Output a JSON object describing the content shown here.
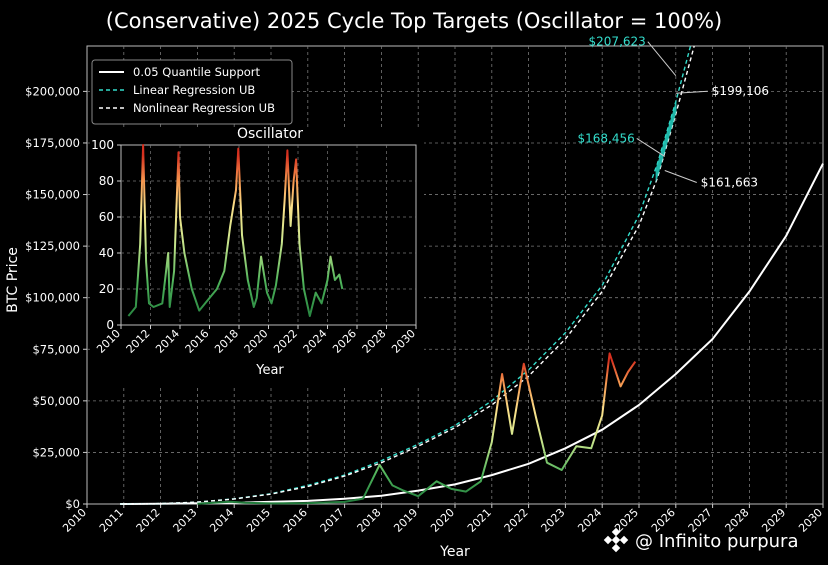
{
  "chart_data": [
    {
      "type": "line",
      "title": "(Conservative) 2025 Cycle Top Targets (Oscillator = 100%)",
      "xlabel": "Year",
      "ylabel": "BTC Price",
      "xlim": [
        2010,
        2030
      ],
      "ylim": [
        0,
        222000
      ],
      "x_ticks": [
        "2010",
        "2011",
        "2012",
        "2013",
        "2014",
        "2015",
        "2016",
        "2017",
        "2018",
        "2019",
        "2020",
        "2021",
        "2022",
        "2023",
        "2024",
        "2025",
        "2026",
        "2027",
        "2028",
        "2029",
        "2030"
      ],
      "y_ticks": [
        "$0",
        "$25,000",
        "$50,000",
        "$75,000",
        "$100,000",
        "$125,000",
        "$150,000",
        "$175,000",
        "$200,000"
      ],
      "grid": true,
      "legend_position": "top-left",
      "series": [
        {
          "name": "0.05 Quantile Support",
          "style": "solid",
          "color": "#ffffff",
          "x": [
            2010.9,
            2012,
            2014,
            2016,
            2017,
            2018,
            2019,
            2020,
            2021,
            2022,
            2023,
            2024,
            2025,
            2026,
            2027,
            2028,
            2029,
            2030
          ],
          "y": [
            0,
            100,
            600,
            1500,
            2500,
            4000,
            6500,
            9500,
            14000,
            19500,
            27000,
            36000,
            48000,
            63000,
            80000,
            103000,
            130000,
            165000
          ]
        },
        {
          "name": "Linear Regression UB",
          "style": "dashed",
          "color": "#33ddcc",
          "x": [
            2010.9,
            2012,
            2013,
            2014,
            2015,
            2016,
            2017,
            2018,
            2019,
            2020,
            2021,
            2022,
            2023,
            2024,
            2025,
            2025.5,
            2026,
            2026.4
          ],
          "y": [
            0,
            200,
            900,
            2500,
            5000,
            9000,
            14000,
            21000,
            29000,
            38000,
            50000,
            65000,
            83000,
            106000,
            140000,
            165000,
            195000,
            222000
          ]
        },
        {
          "name": "Nonlinear Regression UB",
          "style": "dashed",
          "color": "#ffffff",
          "x": [
            2010.9,
            2012,
            2013,
            2014,
            2015,
            2016,
            2017,
            2018,
            2019,
            2020,
            2021,
            2022,
            2023,
            2024,
            2025,
            2025.5,
            2026,
            2026.5
          ],
          "y": [
            0,
            200,
            900,
            2400,
            4800,
            8500,
            13500,
            20000,
            28000,
            37000,
            48000,
            62000,
            80000,
            103000,
            135000,
            158000,
            189000,
            222000
          ]
        },
        {
          "name": "BTC Price",
          "style": "oscillator-colored",
          "x": [
            2013.0,
            2013.9,
            2014.3,
            2015.0,
            2016.0,
            2017.0,
            2017.5,
            2017.95,
            2018.3,
            2018.6,
            2019.0,
            2019.5,
            2019.9,
            2020.3,
            2020.7,
            2021.0,
            2021.28,
            2021.55,
            2021.87,
            2022.2,
            2022.5,
            2022.9,
            2023.3,
            2023.7,
            2024.0,
            2024.2,
            2024.5,
            2024.7,
            2024.9
          ],
          "y": [
            100,
            1100,
            600,
            300,
            430,
            1000,
            2600,
            19000,
            9000,
            6500,
            3800,
            11000,
            7300,
            6000,
            11000,
            30000,
            63000,
            34000,
            68000,
            42000,
            20000,
            16500,
            28000,
            27000,
            43000,
            73000,
            57000,
            64000,
            69000
          ]
        }
      ],
      "annotations": [
        {
          "text": "$207,623",
          "x": 2026.0,
          "y": 207623,
          "color": "#33ddcc"
        },
        {
          "text": "$199,106",
          "x": 2026.0,
          "y": 199106,
          "color": "#ffffff"
        },
        {
          "text": "$168,456",
          "x": 2025.7,
          "y": 168456,
          "color": "#33ddcc"
        },
        {
          "text": "$161,663",
          "x": 2025.7,
          "y": 161663,
          "color": "#ffffff"
        }
      ]
    },
    {
      "type": "line",
      "title": "Oscillator",
      "xlabel": "Year",
      "xlim": [
        2010,
        2030
      ],
      "ylim": [
        0,
        100
      ],
      "x_ticks": [
        "2010",
        "2012",
        "2014",
        "2016",
        "2018",
        "2020",
        "2022",
        "2024",
        "2026",
        "2028",
        "2030"
      ],
      "y_ticks": [
        "0",
        "20",
        "40",
        "60",
        "80",
        "100"
      ],
      "grid": true,
      "series": [
        {
          "x": [
            2010.5,
            2011.0,
            2011.3,
            2011.5,
            2011.7,
            2011.9,
            2012.2,
            2012.8,
            2013.2,
            2013.3,
            2013.6,
            2013.9,
            2014.0,
            2014.3,
            2014.8,
            2015.3,
            2016.0,
            2016.5,
            2017.0,
            2017.4,
            2017.8,
            2017.95,
            2018.2,
            2018.6,
            2019.0,
            2019.2,
            2019.5,
            2019.9,
            2020.2,
            2020.5,
            2020.9,
            2021.1,
            2021.28,
            2021.5,
            2021.7,
            2021.87,
            2022.1,
            2022.4,
            2022.8,
            2023.2,
            2023.6,
            2024.0,
            2024.2,
            2024.5,
            2024.8,
            2025.0
          ],
          "y": [
            5,
            10,
            45,
            100,
            35,
            12,
            10,
            12,
            40,
            10,
            30,
            96,
            60,
            40,
            20,
            8,
            15,
            20,
            30,
            55,
            75,
            98,
            50,
            25,
            10,
            15,
            38,
            18,
            12,
            22,
            45,
            70,
            97,
            55,
            80,
            92,
            45,
            20,
            5,
            18,
            12,
            25,
            38,
            25,
            28,
            20
          ]
        }
      ]
    }
  ],
  "watermark": "@ Infinito purpura"
}
